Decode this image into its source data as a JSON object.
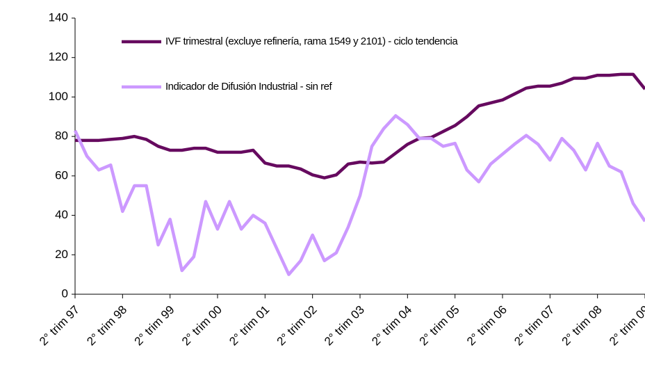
{
  "chart_data": {
    "type": "line",
    "categories": [
      "2° trim 97",
      null,
      null,
      null,
      "2° trim 98",
      null,
      null,
      null,
      "2° trim 99",
      null,
      null,
      null,
      "2° trim 00",
      null,
      null,
      null,
      "2° trim 01",
      null,
      null,
      null,
      "2° trim 02",
      null,
      null,
      null,
      "2° trim 03",
      null,
      null,
      null,
      "2° trim 04",
      null,
      null,
      null,
      "2° trim 05",
      null,
      null,
      null,
      "2° trim 06",
      null,
      null,
      null,
      "2° trim 07",
      null,
      null,
      null,
      "2° trim 08",
      null,
      null,
      null,
      "2° trim 09"
    ],
    "series": [
      {
        "name": "IVF trimestral (excluye refinería, rama 1549 y 2101) - ciclo tendencia",
        "color": "#660a5f",
        "values": [
          78,
          78,
          78,
          78.5,
          79,
          80,
          78.5,
          75,
          73,
          73,
          74,
          74,
          72,
          72,
          72,
          73,
          66.5,
          65,
          65,
          63.5,
          60.5,
          59,
          60.5,
          66,
          67,
          66.5,
          67,
          71.5,
          76,
          79,
          79.5,
          82.5,
          85.5,
          90,
          95.5,
          97,
          98.5,
          101.5,
          104.5,
          105.5,
          105.5,
          107,
          109.5,
          109.5,
          111,
          111,
          111.5,
          111.5,
          104
        ]
      },
      {
        "name": "Indicador de Difusión Industrial - sin ref",
        "color": "#cc99ff",
        "values": [
          83,
          70,
          63,
          65.5,
          42,
          55,
          55,
          25,
          38,
          12,
          19,
          47,
          33,
          47,
          33,
          40,
          36,
          23,
          10,
          17,
          30,
          17,
          21,
          34,
          50,
          75,
          84,
          90.5,
          86,
          79,
          79,
          75,
          76.5,
          63,
          57,
          66,
          71,
          76,
          80.5,
          76,
          68,
          79,
          73,
          63,
          76.5,
          65,
          62,
          46,
          37
        ]
      }
    ],
    "ylim": [
      0,
      140
    ],
    "yticks": [
      0,
      20,
      40,
      60,
      80,
      100,
      120,
      140
    ],
    "grid": false
  }
}
